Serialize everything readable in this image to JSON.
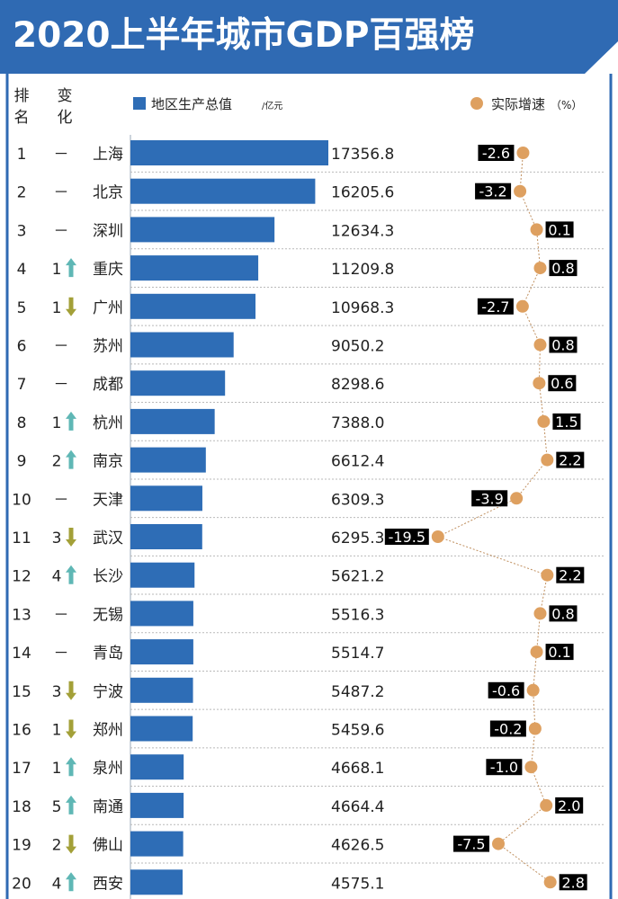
{
  "title": "2020上半年城市GDP百强榜",
  "headers": {
    "rank": [
      "排",
      "名"
    ],
    "change": [
      "变",
      "化"
    ]
  },
  "colors": {
    "title_bg": "#2f6ab3",
    "bar": "#2e6db6",
    "dot": "#dea060",
    "up": "#5fb7b5",
    "down": "#a3a038",
    "label_bg": "#000000",
    "text": "#222222"
  },
  "chart_data": {
    "type": "bar",
    "title": "2020上半年城市GDP百强榜",
    "series": [
      {
        "name": "地区生产总值",
        "unit": "/亿元",
        "values": [
          17356.8,
          16205.6,
          12634.3,
          11209.8,
          10968.3,
          9050.2,
          8298.6,
          7388.0,
          6612.4,
          6309.3,
          6295.3,
          5621.2,
          5516.3,
          5514.7,
          5487.2,
          5459.6,
          4668.1,
          4664.4,
          4626.5,
          4575.1
        ],
        "labels": [
          "17356.8",
          "16205.6",
          "12634.3",
          "11209.8",
          "10968.3",
          "9050.2",
          "8298.6",
          "7388.0",
          "6612.4",
          "6309.3",
          "6295.3",
          "5621.2",
          "5516.3",
          "5514.7",
          "5487.2",
          "5459.6",
          "4668.1",
          "4664.4",
          "4626.5",
          "4575.1"
        ]
      },
      {
        "name": "实际增速",
        "unit": "（%）",
        "values": [
          -2.6,
          -3.2,
          0.1,
          0.8,
          -2.7,
          0.8,
          0.6,
          1.5,
          2.2,
          -3.9,
          -19.5,
          2.2,
          0.8,
          0.1,
          -0.6,
          -0.2,
          -1.0,
          2.0,
          -7.5,
          2.8
        ],
        "labels": [
          "-2.6",
          "-3.2",
          "0.1",
          "0.8",
          "-2.7",
          "0.8",
          "0.6",
          "1.5",
          "2.2",
          "-3.9",
          "-19.5",
          "2.2",
          "0.8",
          "0.1",
          "-0.6",
          "-0.2",
          "-1.0",
          "2.0",
          "-7.5",
          "2.8"
        ]
      }
    ],
    "ranks": [
      "1",
      "2",
      "3",
      "4",
      "5",
      "6",
      "7",
      "8",
      "9",
      "10",
      "11",
      "12",
      "13",
      "14",
      "15",
      "16",
      "17",
      "18",
      "19",
      "20"
    ],
    "categories": [
      "上海",
      "北京",
      "深圳",
      "重庆",
      "广州",
      "苏州",
      "成都",
      "杭州",
      "南京",
      "天津",
      "武汉",
      "长沙",
      "无锡",
      "青岛",
      "宁波",
      "郑州",
      "泉州",
      "南通",
      "佛山",
      "西安"
    ],
    "change": [
      {
        "dir": "none",
        "num": "",
        "dash": "－"
      },
      {
        "dir": "none",
        "num": "",
        "dash": "－"
      },
      {
        "dir": "none",
        "num": "",
        "dash": "－"
      },
      {
        "dir": "up",
        "num": "1",
        "dash": ""
      },
      {
        "dir": "down",
        "num": "1",
        "dash": ""
      },
      {
        "dir": "none",
        "num": "",
        "dash": "－"
      },
      {
        "dir": "none",
        "num": "",
        "dash": "－"
      },
      {
        "dir": "up",
        "num": "1",
        "dash": ""
      },
      {
        "dir": "up",
        "num": "2",
        "dash": ""
      },
      {
        "dir": "none",
        "num": "",
        "dash": "－"
      },
      {
        "dir": "down",
        "num": "3",
        "dash": ""
      },
      {
        "dir": "up",
        "num": "4",
        "dash": ""
      },
      {
        "dir": "none",
        "num": "",
        "dash": "－"
      },
      {
        "dir": "none",
        "num": "",
        "dash": "－"
      },
      {
        "dir": "down",
        "num": "3",
        "dash": ""
      },
      {
        "dir": "down",
        "num": "1",
        "dash": ""
      },
      {
        "dir": "up",
        "num": "1",
        "dash": ""
      },
      {
        "dir": "up",
        "num": "5",
        "dash": ""
      },
      {
        "dir": "down",
        "num": "2",
        "dash": ""
      },
      {
        "dir": "up",
        "num": "4",
        "dash": ""
      }
    ]
  }
}
